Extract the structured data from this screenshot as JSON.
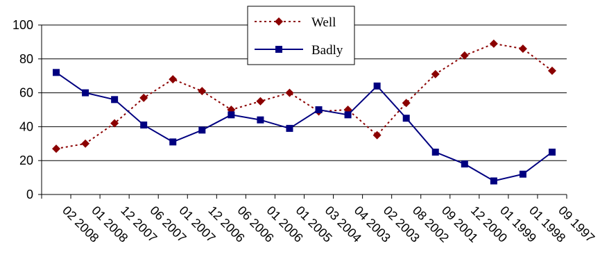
{
  "chart_data": {
    "type": "line",
    "categories": [
      "02 2008",
      "01 2008",
      "12 2007",
      "06 2007",
      "01 2007",
      "12 2006",
      "06 2006",
      "01 2006",
      "01 2005",
      "03 2004",
      "04 2003",
      "02 2003",
      "08 2002",
      "09 2001",
      "12 2000",
      "01 1999",
      "01 1998",
      "09 1997"
    ],
    "series": [
      {
        "name": "Well",
        "color": "#8b0000",
        "marker": "diamond",
        "line": "dotted",
        "values": [
          27,
          30,
          42,
          57,
          68,
          61,
          50,
          55,
          60,
          49,
          50,
          35,
          54,
          71,
          82,
          89,
          86,
          73
        ]
      },
      {
        "name": "Badly",
        "color": "#000080",
        "marker": "square",
        "line": "solid",
        "values": [
          72,
          60,
          56,
          41,
          31,
          38,
          47,
          44,
          39,
          50,
          47,
          64,
          45,
          25,
          18,
          8,
          12,
          25
        ]
      }
    ],
    "ylim": [
      0,
      100
    ],
    "yticks": [
      0,
      20,
      40,
      60,
      80,
      100
    ],
    "grid": true,
    "legend": "top-center",
    "title": "",
    "xlabel": "",
    "ylabel": ""
  }
}
